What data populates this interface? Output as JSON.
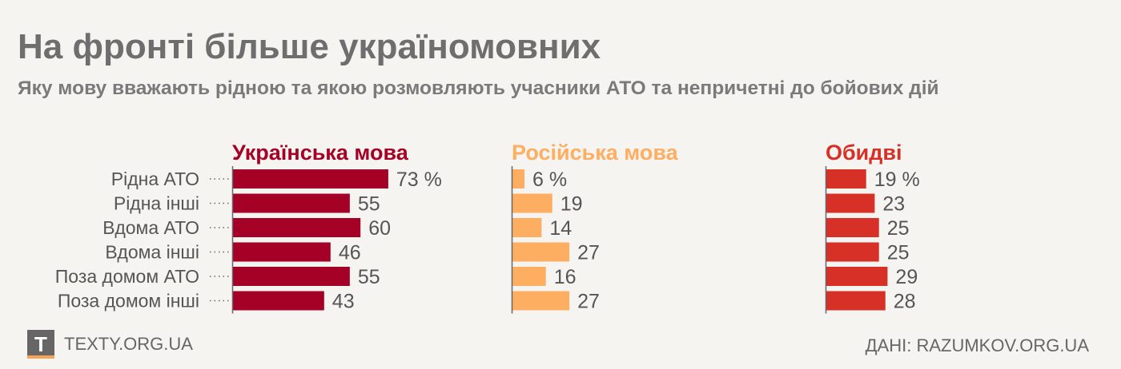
{
  "title": "На фронті більше україномовних",
  "subtitle": "Яку мову вважають рідною та якою розмовляють учасники АТО та непричетні до бойових дій",
  "footer": {
    "logo_letter": "T",
    "site": "TEXTY.ORG.UA",
    "source": "ДАНІ: RAZUMKOV.ORG.UA"
  },
  "chart_data": {
    "type": "bar",
    "orientation": "horizontal",
    "categories": [
      "Рідна АТО",
      "Рідна інші",
      "Вдома АТО",
      "Вдома інші",
      "Поза домом АТО",
      "Поза домом інші"
    ],
    "series": [
      {
        "name": "Українська мова",
        "color": "#a50026",
        "values": [
          73,
          55,
          60,
          46,
          55,
          43
        ],
        "labels": [
          "73 %",
          "55",
          "60",
          "46",
          "55",
          "43"
        ]
      },
      {
        "name": "Російська мова",
        "color": "#fdae61",
        "values": [
          6,
          19,
          14,
          27,
          16,
          27
        ],
        "labels": [
          "6 %",
          "19",
          "14",
          "27",
          "16",
          "27"
        ]
      },
      {
        "name": "Обидві",
        "color": "#d73027",
        "values": [
          19,
          23,
          25,
          25,
          29,
          28
        ],
        "labels": [
          "19 %",
          "23",
          "25",
          "25",
          "29",
          "28"
        ]
      }
    ],
    "unit": "%"
  }
}
